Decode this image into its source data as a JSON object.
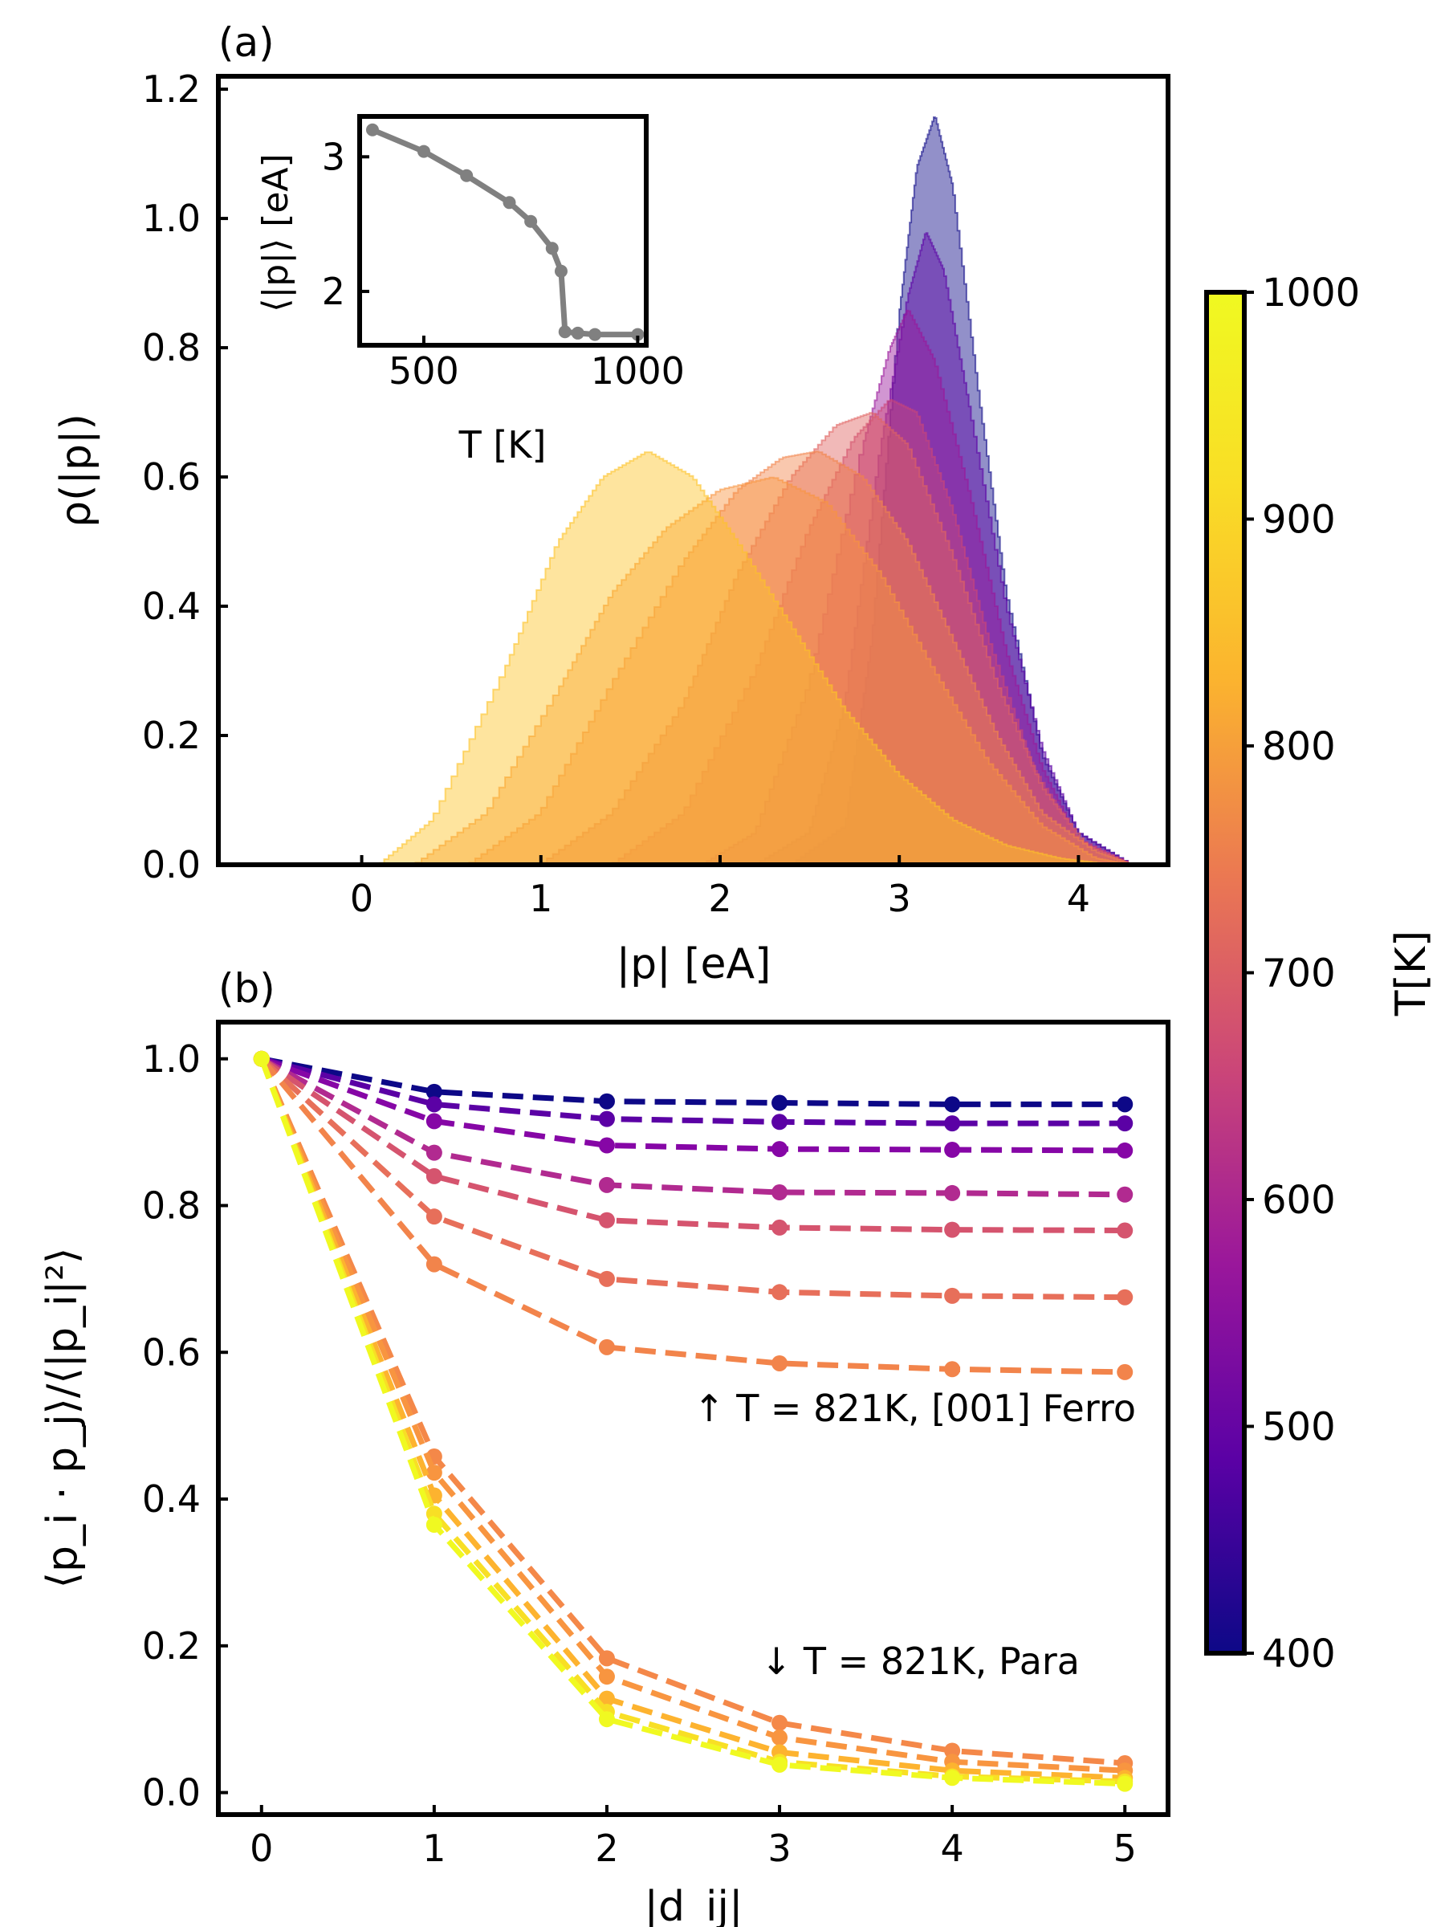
{
  "chart_data": [
    {
      "panel_label": "(a)",
      "type": "area",
      "xlabel": "|p| [eA]",
      "ylabel": "ρ(|p|)",
      "xlim": [
        -0.8,
        4.5
      ],
      "ylim": [
        0.0,
        1.22
      ],
      "xticks": [
        "0",
        "1",
        "2",
        "3",
        "4"
      ],
      "yticks": [
        "0.0",
        "0.2",
        "0.4",
        "0.6",
        "0.8",
        "1.0",
        "1.2"
      ],
      "grid": false,
      "series": [
        {
          "T": 400,
          "color": "#0d0887",
          "points": [
            [
              2.4,
              0
            ],
            [
              2.7,
              0.06
            ],
            [
              2.85,
              0.35
            ],
            [
              3.0,
              0.85
            ],
            [
              3.1,
              1.08
            ],
            [
              3.2,
              1.16
            ],
            [
              3.3,
              1.05
            ],
            [
              3.45,
              0.72
            ],
            [
              3.6,
              0.42
            ],
            [
              3.8,
              0.17
            ],
            [
              4.0,
              0.05
            ],
            [
              4.3,
              0
            ]
          ]
        },
        {
          "T": 500,
          "color": "#5b01a5",
          "points": [
            [
              2.2,
              0
            ],
            [
              2.5,
              0.05
            ],
            [
              2.7,
              0.25
            ],
            [
              2.9,
              0.65
            ],
            [
              3.05,
              0.88
            ],
            [
              3.15,
              0.98
            ],
            [
              3.25,
              0.92
            ],
            [
              3.4,
              0.7
            ],
            [
              3.6,
              0.4
            ],
            [
              3.8,
              0.18
            ],
            [
              4.0,
              0.05
            ],
            [
              4.3,
              0
            ]
          ]
        },
        {
          "T": 600,
          "color": "#9a179b",
          "points": [
            [
              1.9,
              0
            ],
            [
              2.2,
              0.05
            ],
            [
              2.5,
              0.28
            ],
            [
              2.8,
              0.65
            ],
            [
              2.95,
              0.8
            ],
            [
              3.05,
              0.86
            ],
            [
              3.2,
              0.78
            ],
            [
              3.4,
              0.57
            ],
            [
              3.6,
              0.33
            ],
            [
              3.8,
              0.15
            ],
            [
              4.0,
              0.04
            ],
            [
              4.3,
              0
            ]
          ]
        },
        {
          "T": 700,
          "color": "#cb4678",
          "points": [
            [
              1.4,
              0
            ],
            [
              1.8,
              0.08
            ],
            [
              2.2,
              0.3
            ],
            [
              2.5,
              0.52
            ],
            [
              2.75,
              0.66
            ],
            [
              2.95,
              0.72
            ],
            [
              3.1,
              0.7
            ],
            [
              3.3,
              0.55
            ],
            [
              3.5,
              0.35
            ],
            [
              3.75,
              0.15
            ],
            [
              4.0,
              0.04
            ],
            [
              4.3,
              0
            ]
          ]
        },
        {
          "T": 760,
          "color": "#e16462",
          "points": [
            [
              1.0,
              0
            ],
            [
              1.4,
              0.08
            ],
            [
              1.8,
              0.25
            ],
            [
              2.1,
              0.45
            ],
            [
              2.4,
              0.6
            ],
            [
              2.65,
              0.68
            ],
            [
              2.85,
              0.7
            ],
            [
              3.05,
              0.65
            ],
            [
              3.3,
              0.48
            ],
            [
              3.55,
              0.28
            ],
            [
              3.8,
              0.12
            ],
            [
              4.05,
              0.03
            ],
            [
              4.3,
              0
            ]
          ]
        },
        {
          "T": 800,
          "color": "#f2844b",
          "points": [
            [
              0.6,
              0
            ],
            [
              1.0,
              0.08
            ],
            [
              1.4,
              0.28
            ],
            [
              1.8,
              0.47
            ],
            [
              2.1,
              0.58
            ],
            [
              2.35,
              0.63
            ],
            [
              2.55,
              0.64
            ],
            [
              2.8,
              0.6
            ],
            [
              3.05,
              0.5
            ],
            [
              3.3,
              0.35
            ],
            [
              3.55,
              0.2
            ],
            [
              3.8,
              0.08
            ],
            [
              4.1,
              0.02
            ],
            [
              4.3,
              0
            ]
          ]
        },
        {
          "T": 821,
          "color": "#f89540",
          "points": [
            [
              0.3,
              0
            ],
            [
              0.7,
              0.08
            ],
            [
              1.1,
              0.27
            ],
            [
              1.4,
              0.42
            ],
            [
              1.7,
              0.52
            ],
            [
              2.0,
              0.58
            ],
            [
              2.3,
              0.6
            ],
            [
              2.6,
              0.56
            ],
            [
              2.9,
              0.45
            ],
            [
              3.2,
              0.3
            ],
            [
              3.5,
              0.16
            ],
            [
              3.8,
              0.06
            ],
            [
              4.1,
              0.01
            ],
            [
              4.3,
              0
            ]
          ]
        },
        {
          "T": 900,
          "color": "#fdc328",
          "points": [
            [
              0.1,
              0
            ],
            [
              0.4,
              0.07
            ],
            [
              0.8,
              0.3
            ],
            [
              1.1,
              0.5
            ],
            [
              1.35,
              0.6
            ],
            [
              1.6,
              0.64
            ],
            [
              1.85,
              0.6
            ],
            [
              2.1,
              0.5
            ],
            [
              2.4,
              0.37
            ],
            [
              2.7,
              0.24
            ],
            [
              3.0,
              0.14
            ],
            [
              3.3,
              0.07
            ],
            [
              3.6,
              0.03
            ],
            [
              3.9,
              0.01
            ],
            [
              4.2,
              0
            ]
          ]
        }
      ]
    },
    {
      "panel_label": "(b)",
      "type": "line",
      "xlabel": "|d_ij|",
      "ylabel": "⟨p_i · p_j⟩/⟨|p_i|²⟩",
      "xlim": [
        -0.25,
        5.25
      ],
      "ylim": [
        -0.03,
        1.05
      ],
      "xticks": [
        "0",
        "1",
        "2",
        "3",
        "4",
        "5"
      ],
      "yticks": [
        "0.0",
        "0.2",
        "0.4",
        "0.6",
        "0.8",
        "1.0"
      ],
      "x": [
        0,
        1,
        2,
        3,
        4,
        5
      ],
      "grid": false,
      "series": [
        {
          "T": 400,
          "color": "#0d0887",
          "values": [
            1.0,
            0.955,
            0.942,
            0.94,
            0.938,
            0.938
          ]
        },
        {
          "T": 500,
          "color": "#5b01a5",
          "values": [
            1.0,
            0.938,
            0.918,
            0.914,
            0.912,
            0.912
          ]
        },
        {
          "T": 560,
          "color": "#8606a6",
          "values": [
            1.0,
            0.915,
            0.882,
            0.877,
            0.876,
            0.875
          ]
        },
        {
          "T": 650,
          "color": "#b12a90",
          "values": [
            1.0,
            0.872,
            0.828,
            0.818,
            0.817,
            0.815
          ]
        },
        {
          "T": 720,
          "color": "#d5546e",
          "values": [
            1.0,
            0.84,
            0.78,
            0.77,
            0.767,
            0.766
          ]
        },
        {
          "T": 780,
          "color": "#e76f5a",
          "values": [
            1.0,
            0.785,
            0.7,
            0.682,
            0.677,
            0.675
          ]
        },
        {
          "T": 821,
          "color": "#f2844b",
          "values": [
            1.0,
            0.72,
            0.607,
            0.585,
            0.577,
            0.573
          ]
        },
        {
          "T": 840,
          "color": "#f48849",
          "values": [
            1.0,
            0.458,
            0.183,
            0.095,
            0.057,
            0.04
          ]
        },
        {
          "T": 870,
          "color": "#f89540",
          "values": [
            1.0,
            0.436,
            0.158,
            0.075,
            0.042,
            0.03
          ]
        },
        {
          "T": 920,
          "color": "#fdb32f",
          "values": [
            1.0,
            0.405,
            0.128,
            0.055,
            0.03,
            0.02
          ]
        },
        {
          "T": 960,
          "color": "#f8df25",
          "values": [
            1.0,
            0.38,
            0.11,
            0.042,
            0.022,
            0.015
          ]
        },
        {
          "T": 1000,
          "color": "#f0f921",
          "values": [
            1.0,
            0.365,
            0.1,
            0.038,
            0.02,
            0.012
          ]
        }
      ],
      "annotations": [
        "↑  T = 821K, [001] Ferro",
        "↓  T = 821K, Para"
      ]
    },
    {
      "panel_label": "inset",
      "type": "line",
      "xlabel": "T [K]",
      "ylabel": "⟨|p|⟩ [eA]",
      "xlim": [
        350,
        1020
      ],
      "ylim": [
        1.6,
        3.3
      ],
      "xticks": [
        "500",
        "1000"
      ],
      "yticks": [
        "2",
        "3"
      ],
      "color": "#808080",
      "x": [
        380,
        500,
        600,
        700,
        750,
        800,
        821,
        830,
        860,
        900,
        1000
      ],
      "values": [
        3.2,
        3.04,
        2.86,
        2.66,
        2.52,
        2.32,
        2.15,
        1.7,
        1.69,
        1.68,
        1.68
      ]
    }
  ],
  "colorbar": {
    "label": "T[K]",
    "ticks": [
      "1000",
      "900",
      "800",
      "700",
      "600",
      "500",
      "400"
    ],
    "range": [
      400,
      1000
    ]
  }
}
